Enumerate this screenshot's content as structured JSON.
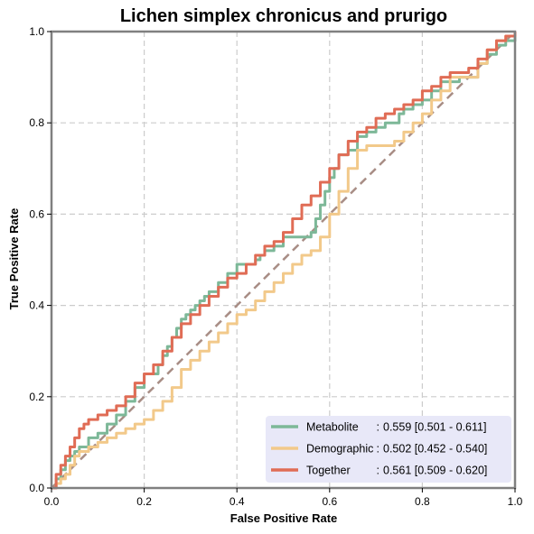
{
  "chart_data": {
    "type": "line",
    "title": "Lichen simplex chronicus and prurigo",
    "xlabel": "False Positive Rate",
    "ylabel": "True Positive Rate",
    "xlim": [
      0,
      1
    ],
    "ylim": [
      0,
      1
    ],
    "x_ticks": [
      "0.0",
      "0.2",
      "0.4",
      "0.6",
      "0.8",
      "1.0"
    ],
    "y_ticks": [
      "0.0",
      "0.2",
      "0.4",
      "0.6",
      "0.8",
      "1.0"
    ],
    "grid": true,
    "legend_position": "bottom-right",
    "colors": {
      "metabolite": "#7db898",
      "demographic": "#f2c98a",
      "together": "#e06c55",
      "diagonal": "#a88d85",
      "legend_bg": "#e8e8f8",
      "axes": "#808080",
      "grid": "#cccccc"
    },
    "legend": [
      {
        "name": "Metabolite",
        "sep": ":",
        "value": "0.559 [0.501 - 0.611]"
      },
      {
        "name": "Demographic",
        "sep": ":",
        "value": "0.502 [0.452 - 0.540]"
      },
      {
        "name": "Together",
        "sep": ":",
        "value": "0.561 [0.509 - 0.620]"
      }
    ],
    "series": [
      {
        "name": "Metabolite",
        "x": [
          0.0,
          0.01,
          0.02,
          0.03,
          0.04,
          0.05,
          0.06,
          0.08,
          0.1,
          0.12,
          0.14,
          0.16,
          0.18,
          0.2,
          0.23,
          0.24,
          0.25,
          0.26,
          0.27,
          0.28,
          0.29,
          0.3,
          0.31,
          0.32,
          0.33,
          0.34,
          0.36,
          0.38,
          0.4,
          0.42,
          0.44,
          0.45,
          0.46,
          0.48,
          0.5,
          0.52,
          0.54,
          0.56,
          0.57,
          0.58,
          0.59,
          0.6,
          0.61,
          0.62,
          0.64,
          0.66,
          0.68,
          0.7,
          0.72,
          0.74,
          0.75,
          0.76,
          0.78,
          0.8,
          0.82,
          0.84,
          0.86,
          0.88,
          0.9,
          0.92,
          0.94,
          0.96,
          0.98,
          1.0
        ],
        "y": [
          0.0,
          0.02,
          0.04,
          0.06,
          0.07,
          0.08,
          0.09,
          0.11,
          0.12,
          0.14,
          0.16,
          0.19,
          0.22,
          0.25,
          0.27,
          0.29,
          0.31,
          0.33,
          0.35,
          0.37,
          0.38,
          0.39,
          0.4,
          0.41,
          0.42,
          0.43,
          0.45,
          0.47,
          0.49,
          0.49,
          0.5,
          0.51,
          0.52,
          0.53,
          0.55,
          0.55,
          0.55,
          0.56,
          0.59,
          0.62,
          0.65,
          0.68,
          0.7,
          0.73,
          0.74,
          0.77,
          0.78,
          0.79,
          0.8,
          0.8,
          0.82,
          0.83,
          0.84,
          0.85,
          0.87,
          0.89,
          0.89,
          0.9,
          0.9,
          0.93,
          0.95,
          0.97,
          0.98,
          1.0
        ]
      },
      {
        "name": "Demographic",
        "x": [
          0.0,
          0.01,
          0.02,
          0.03,
          0.04,
          0.05,
          0.06,
          0.08,
          0.1,
          0.12,
          0.14,
          0.16,
          0.18,
          0.2,
          0.22,
          0.24,
          0.26,
          0.28,
          0.3,
          0.32,
          0.34,
          0.36,
          0.38,
          0.4,
          0.42,
          0.44,
          0.46,
          0.48,
          0.5,
          0.52,
          0.54,
          0.56,
          0.58,
          0.6,
          0.62,
          0.64,
          0.66,
          0.68,
          0.7,
          0.72,
          0.74,
          0.76,
          0.78,
          0.8,
          0.82,
          0.84,
          0.86,
          0.88,
          0.9,
          0.92,
          0.94,
          0.96,
          0.98,
          1.0
        ],
        "y": [
          0.0,
          0.01,
          0.02,
          0.03,
          0.05,
          0.07,
          0.08,
          0.09,
          0.1,
          0.11,
          0.12,
          0.13,
          0.14,
          0.15,
          0.17,
          0.19,
          0.22,
          0.26,
          0.28,
          0.3,
          0.32,
          0.34,
          0.36,
          0.38,
          0.39,
          0.41,
          0.43,
          0.45,
          0.47,
          0.49,
          0.51,
          0.52,
          0.55,
          0.6,
          0.65,
          0.7,
          0.74,
          0.75,
          0.75,
          0.75,
          0.76,
          0.78,
          0.8,
          0.82,
          0.85,
          0.87,
          0.9,
          0.9,
          0.9,
          0.93,
          0.96,
          0.98,
          0.99,
          1.0
        ]
      },
      {
        "name": "Together",
        "x": [
          0.0,
          0.01,
          0.02,
          0.03,
          0.04,
          0.05,
          0.06,
          0.07,
          0.08,
          0.1,
          0.12,
          0.14,
          0.16,
          0.18,
          0.2,
          0.22,
          0.24,
          0.26,
          0.28,
          0.3,
          0.32,
          0.34,
          0.36,
          0.38,
          0.4,
          0.42,
          0.44,
          0.46,
          0.48,
          0.5,
          0.52,
          0.54,
          0.56,
          0.58,
          0.6,
          0.62,
          0.64,
          0.66,
          0.68,
          0.7,
          0.72,
          0.74,
          0.76,
          0.78,
          0.8,
          0.82,
          0.84,
          0.86,
          0.88,
          0.9,
          0.92,
          0.94,
          0.96,
          0.98,
          1.0
        ],
        "y": [
          0.0,
          0.03,
          0.05,
          0.07,
          0.09,
          0.11,
          0.13,
          0.14,
          0.15,
          0.16,
          0.17,
          0.18,
          0.2,
          0.23,
          0.25,
          0.27,
          0.3,
          0.33,
          0.36,
          0.38,
          0.4,
          0.42,
          0.44,
          0.46,
          0.47,
          0.49,
          0.51,
          0.53,
          0.54,
          0.56,
          0.59,
          0.62,
          0.64,
          0.67,
          0.7,
          0.73,
          0.76,
          0.78,
          0.79,
          0.81,
          0.82,
          0.83,
          0.84,
          0.85,
          0.87,
          0.88,
          0.9,
          0.91,
          0.91,
          0.92,
          0.94,
          0.96,
          0.98,
          0.99,
          1.0
        ]
      }
    ]
  }
}
